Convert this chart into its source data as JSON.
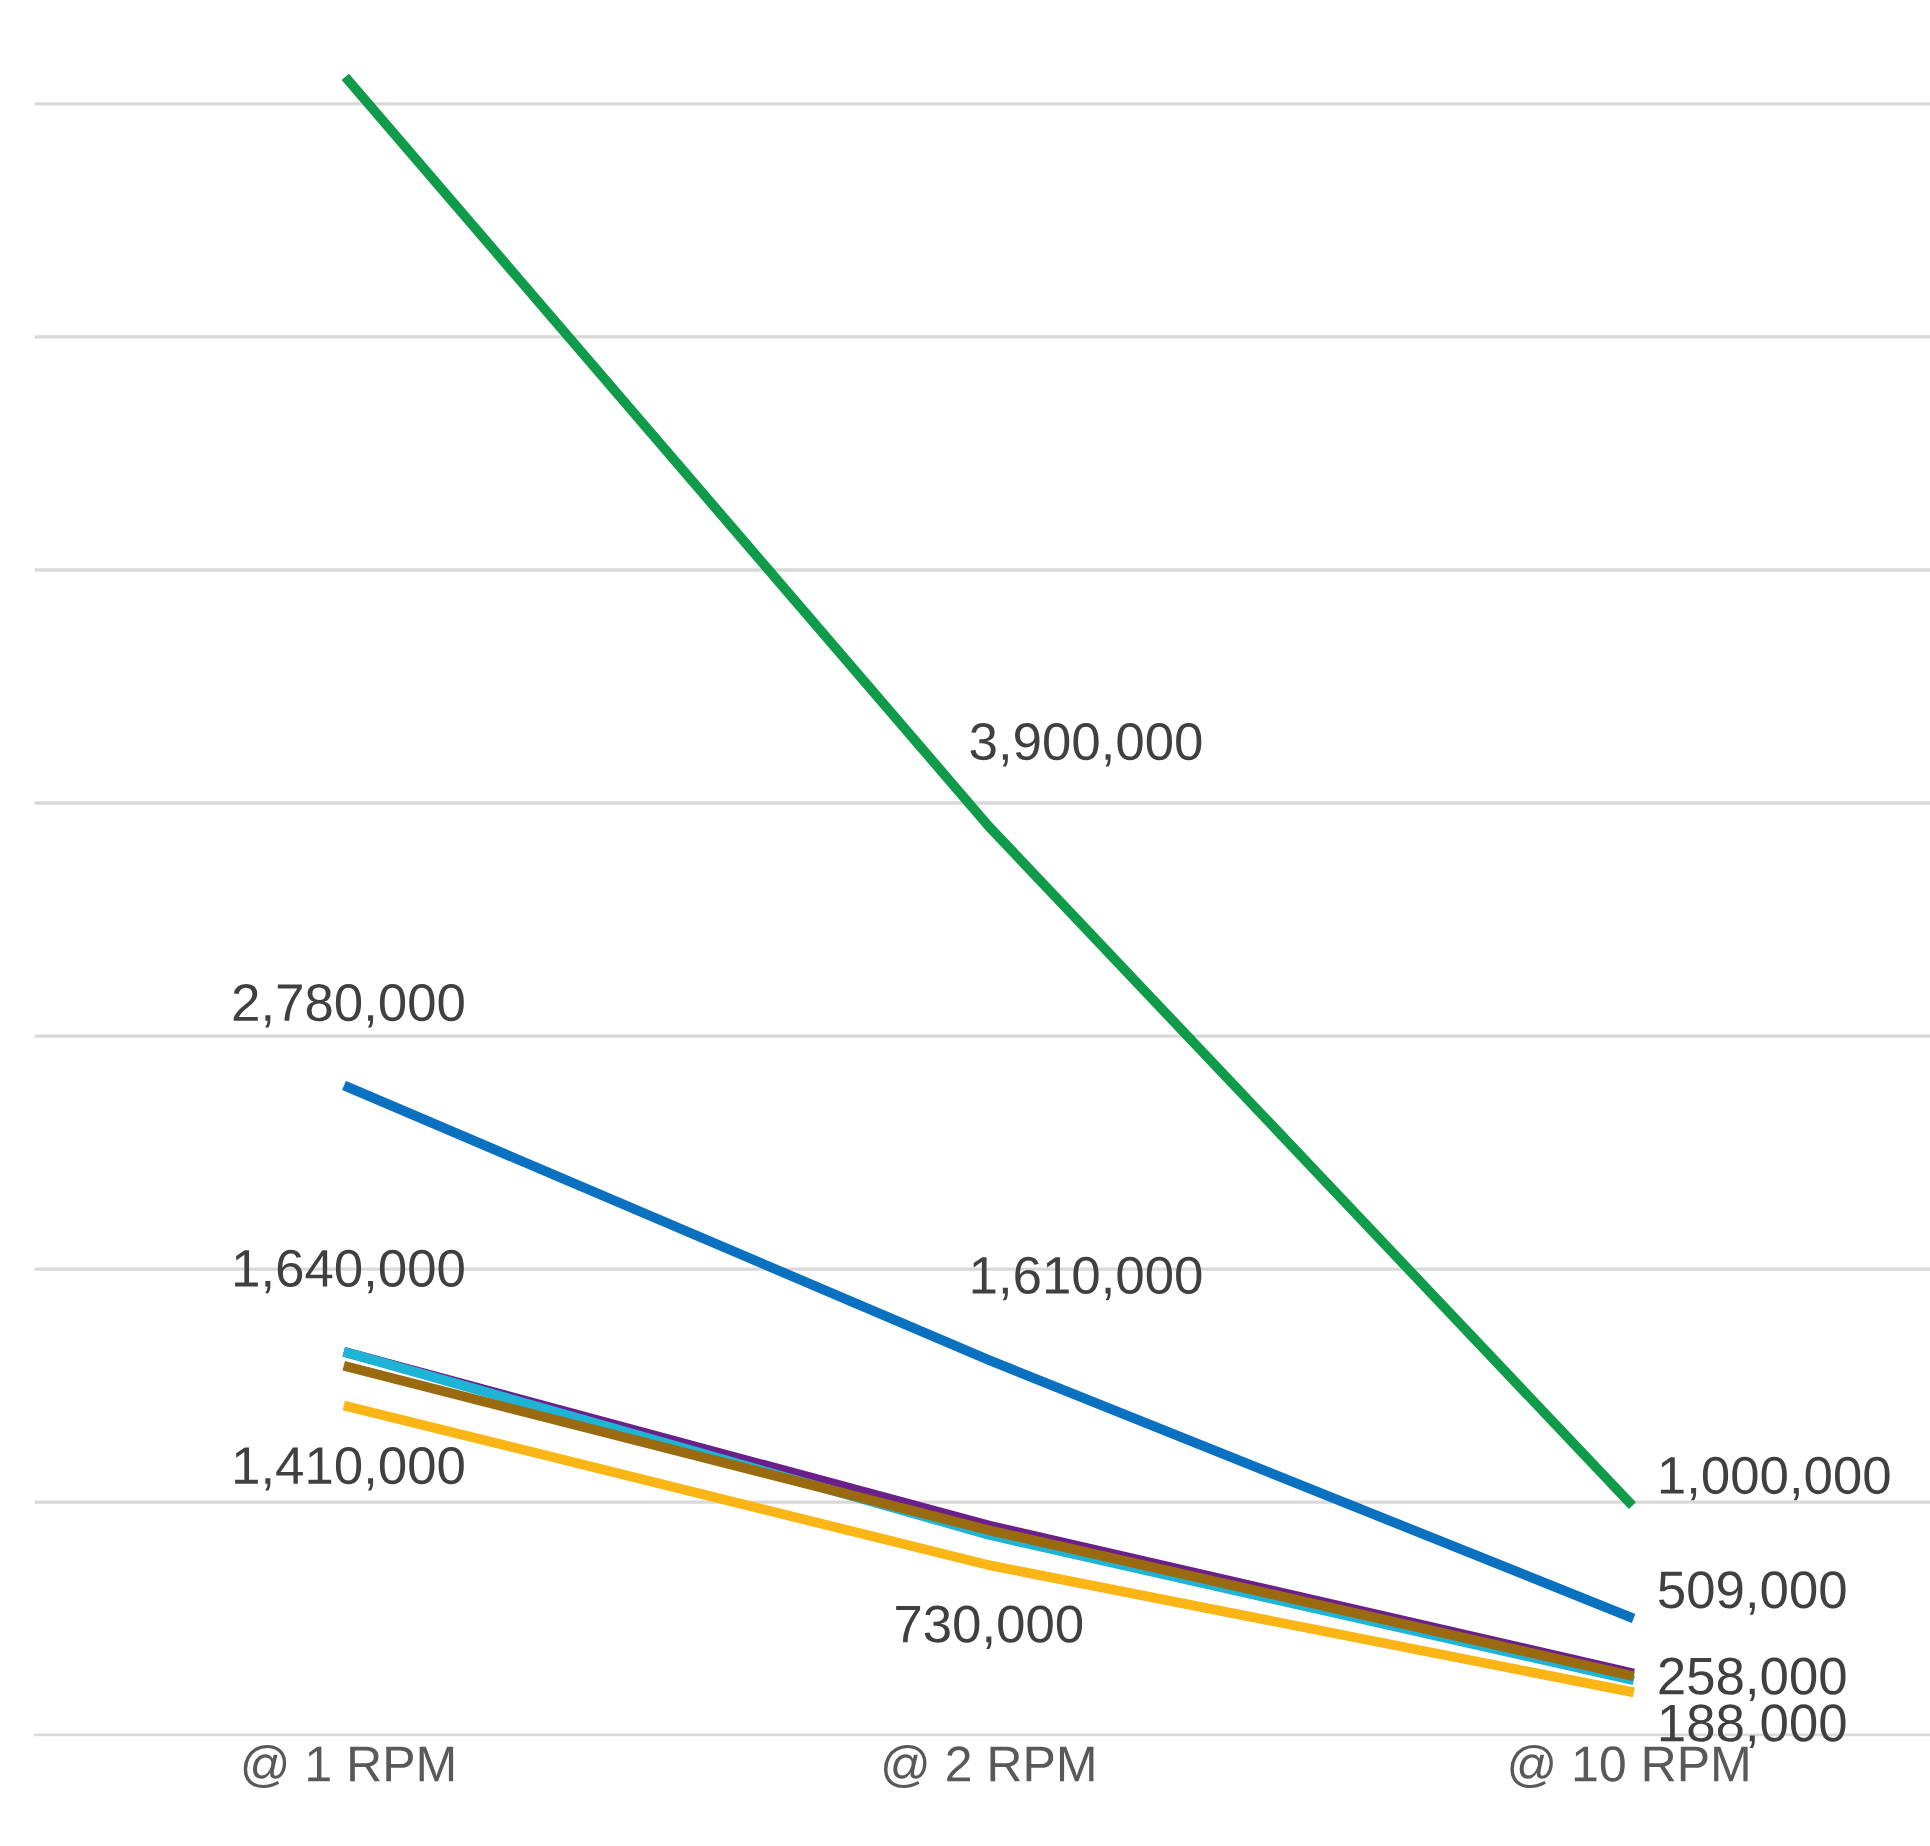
{
  "chart_data": {
    "type": "line",
    "categories": [
      "@ 1 RPM",
      "@ 2 RPM",
      "@ 10 RPM"
    ],
    "series": [
      {
        "color": "#0f9b49",
        "values": [
          7100000,
          3900000,
          1000000
        ],
        "value_labels": [
          null,
          "3,900,000",
          "1,000,000"
        ]
      },
      {
        "color": "#0a70c0",
        "values": [
          2780000,
          1610000,
          509000
        ],
        "value_labels": [
          "2,780,000",
          "1,610,000",
          "509,000"
        ]
      },
      {
        "color": "#6b1f8a",
        "values": [
          1640000,
          900000,
          270000
        ],
        "value_labels": [
          null,
          null,
          null
        ]
      },
      {
        "color": "#1fb3d6",
        "values": [
          1640000,
          860000,
          240000
        ],
        "value_labels": [
          "1,640,000",
          null,
          null
        ]
      },
      {
        "color": "#9a6a10",
        "values": [
          1580000,
          880000,
          258000
        ],
        "value_labels": [
          null,
          null,
          "258,000"
        ]
      },
      {
        "color": "#fbb514",
        "values": [
          1410000,
          730000,
          188000
        ],
        "value_labels": [
          "1,410,000",
          "730,000",
          "188,000"
        ]
      }
    ],
    "yticks": [
      {
        "value": 0,
        "label": null
      },
      {
        "value": 1000000,
        "label": null
      },
      {
        "value": 2000000,
        "label": null
      },
      {
        "value": 3000000,
        "label": null
      },
      {
        "value": 4000000,
        "label": null
      },
      {
        "value": 5000000,
        "label": null
      },
      {
        "value": 6000000,
        "label": null
      },
      {
        "value": 7000000,
        "label": null
      }
    ],
    "grid": "y",
    "tick_labels": "x",
    "marker": "none",
    "line_style": "solid"
  }
}
